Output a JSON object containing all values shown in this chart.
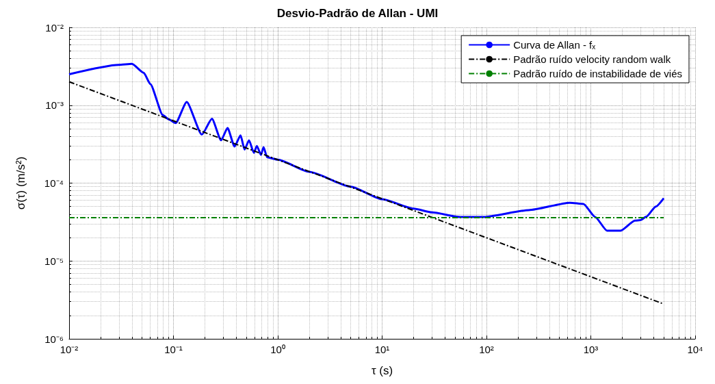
{
  "chart_data": {
    "type": "line",
    "title": "Desvio-Padrão de Allan - UMI",
    "xlabel": "τ (s)",
    "ylabel": "σ(τ) (m/s²)",
    "log": "xy",
    "grid": true,
    "legend": "top right",
    "marker": "none",
    "xlim": [
      0.01,
      10000
    ],
    "ylim": [
      1e-06,
      0.01
    ],
    "xticks": [
      {
        "value": 0.01,
        "label": "10⁻²"
      },
      {
        "value": 0.1,
        "label": "10⁻¹"
      },
      {
        "value": 1,
        "label": "10⁰"
      },
      {
        "value": 10,
        "label": "10¹"
      },
      {
        "value": 100,
        "label": "10²"
      },
      {
        "value": 1000,
        "label": "10³"
      },
      {
        "value": 10000,
        "label": "10⁴"
      }
    ],
    "yticks": [
      {
        "value": 1e-06,
        "label": "10⁻⁶"
      },
      {
        "value": 1e-05,
        "label": "10⁻⁵"
      },
      {
        "value": 0.0001,
        "label": "10⁻⁴"
      },
      {
        "value": 0.001,
        "label": "10⁻³"
      },
      {
        "value": 0.01,
        "label": "10⁻²"
      }
    ],
    "series": [
      {
        "name": "Curva de Allan - fₓ",
        "color": "#0000ff",
        "line_style": "solid",
        "x": [
          0.01,
          0.03,
          0.04,
          0.052,
          0.06,
          0.079,
          0.09,
          0.105,
          0.134,
          0.187,
          0.234,
          0.286,
          0.33,
          0.385,
          0.44,
          0.48,
          0.53,
          0.59,
          0.63,
          0.69,
          0.73,
          0.79,
          1,
          2,
          5,
          10,
          20,
          30,
          56,
          94,
          255,
          630,
          850,
          1100,
          1430,
          1930,
          2650,
          3000,
          3400,
          4200,
          5000
        ],
        "values": [
          0.0025,
          0.0033,
          0.0034,
          0.0026,
          0.00187,
          0.00075,
          0.00066,
          0.00059,
          0.0011,
          0.00042,
          0.00067,
          0.000355,
          0.00051,
          0.000295,
          0.00041,
          0.00027,
          0.000355,
          0.000245,
          0.0003,
          0.00023,
          0.00029,
          0.000215,
          0.0002,
          0.00014,
          9e-05,
          6.2e-05,
          4.7e-05,
          4.2e-05,
          3.67e-05,
          3.67e-05,
          4.5e-05,
          5.6e-05,
          5.4e-05,
          3.67e-05,
          2.45e-05,
          2.45e-05,
          3.3e-05,
          3.35e-05,
          3.7e-05,
          5e-05,
          6.4e-05
        ]
      },
      {
        "name": "Padrão ruído velocity random walk",
        "color": "#000000",
        "line_style": "dashed",
        "x": [
          0.01,
          5000
        ],
        "values": [
          0.002,
          2.8e-06
        ]
      },
      {
        "name": "Padrão ruído de instabilidade de viés",
        "color": "#008000",
        "line_style": "dashed",
        "x": [
          0.01,
          5000
        ],
        "values": [
          3.6e-05,
          3.6e-05
        ]
      }
    ]
  }
}
